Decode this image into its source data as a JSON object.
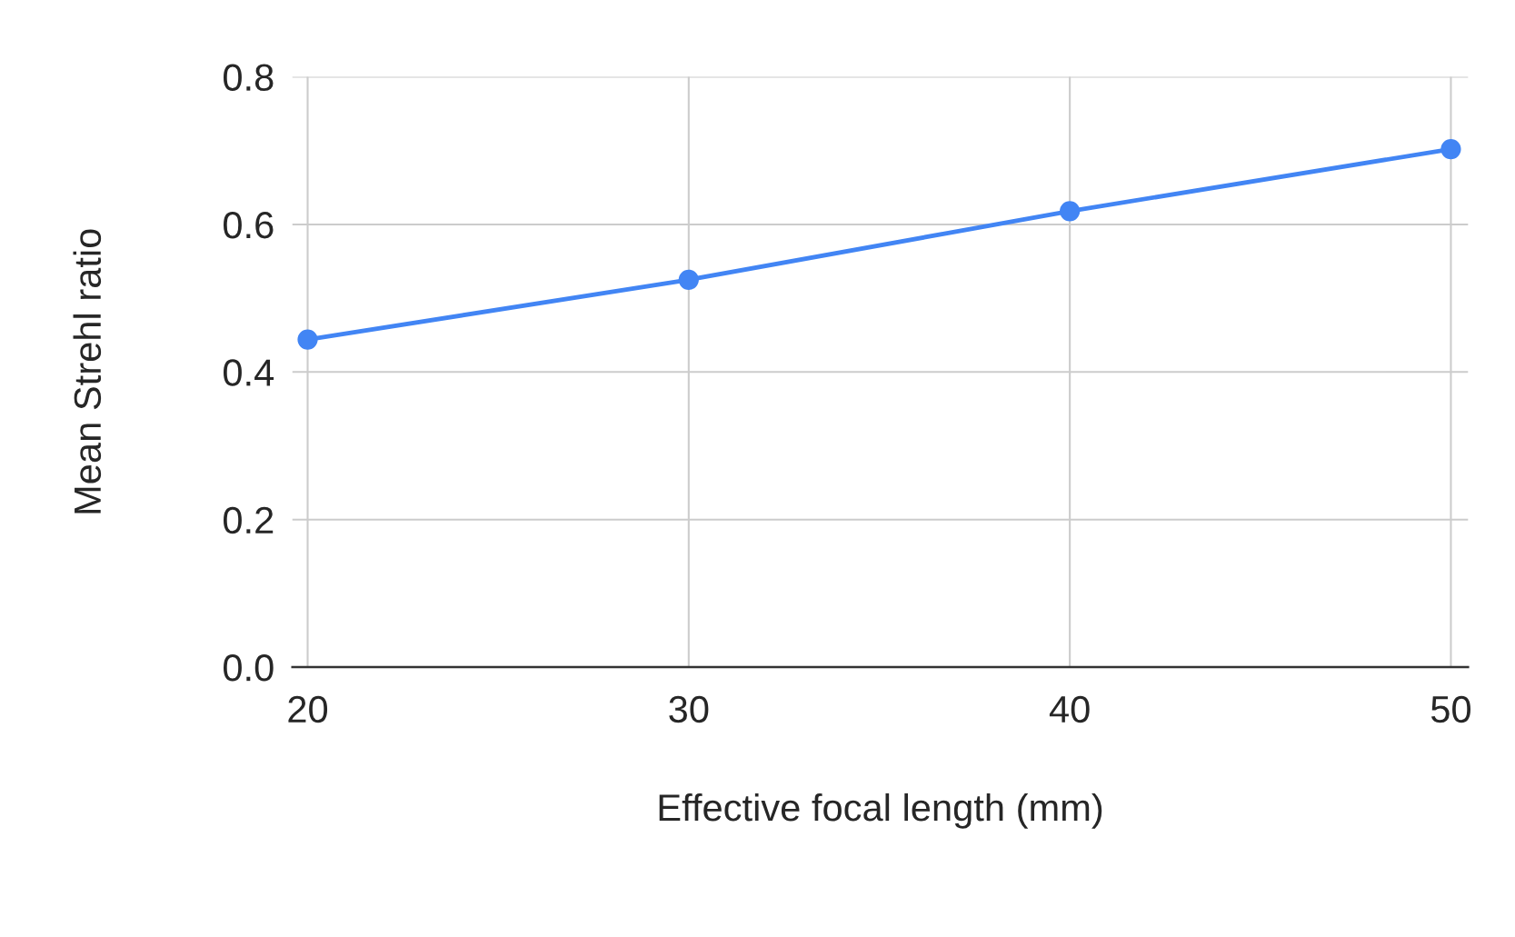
{
  "chart_data": {
    "type": "line",
    "xlabel": "Effective focal length (mm)",
    "ylabel": "Mean Strehl ratio",
    "x": [
      20,
      30,
      40,
      50
    ],
    "series": [
      {
        "color": "#4285f4",
        "values": [
          0.444,
          0.525,
          0.618,
          0.702
        ]
      }
    ],
    "xlim": [
      19.6,
      50.45
    ],
    "xticks": [
      20,
      30,
      40,
      50
    ],
    "ylim": [
      0,
      0.8
    ],
    "yticks": [
      {
        "value": 0,
        "label": "0.0"
      },
      0.2,
      0.4,
      0.6,
      0.8
    ],
    "grid": true,
    "marker": "circle",
    "line_style": "solid",
    "legend": false
  }
}
